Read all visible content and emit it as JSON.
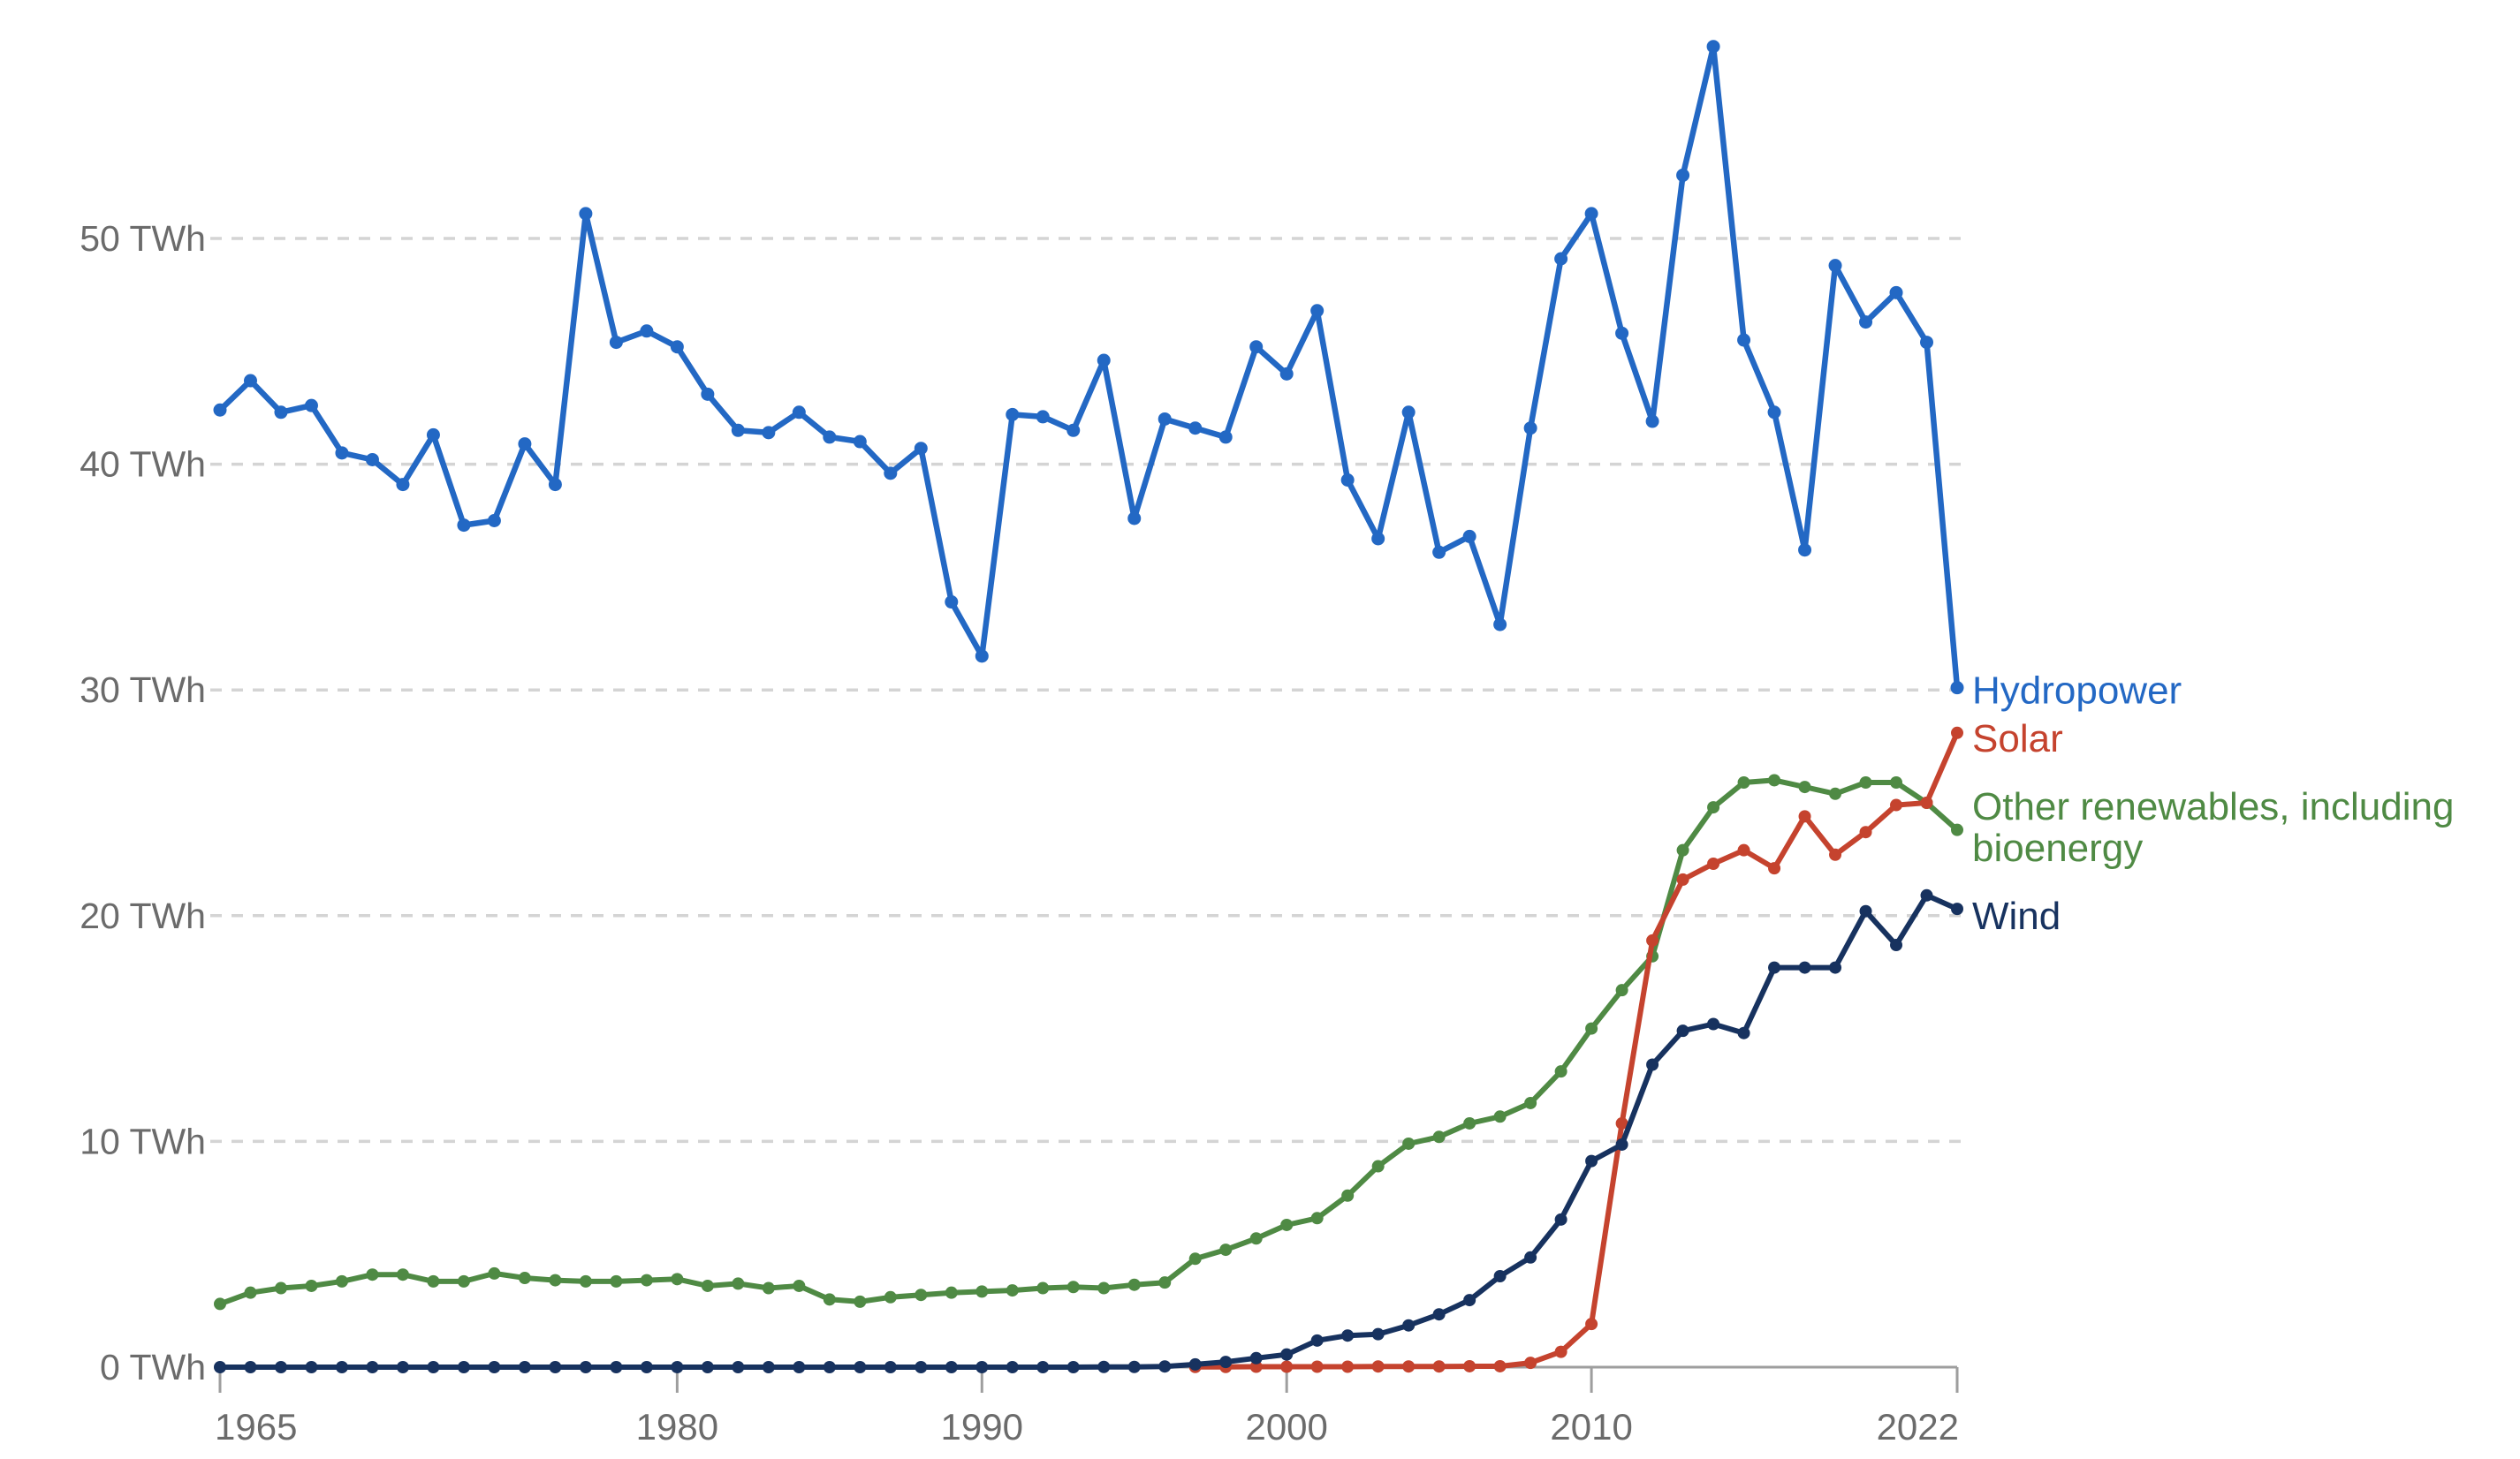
{
  "chart_data": {
    "type": "line",
    "title": "",
    "unit": "TWh",
    "x_label": "",
    "y_label": "",
    "ylim": [
      0,
      60
    ],
    "grid": "horizontal-dashed",
    "legend_position": "end-of-line-labels-right",
    "x": [
      1965,
      1966,
      1967,
      1968,
      1969,
      1970,
      1971,
      1972,
      1973,
      1974,
      1975,
      1976,
      1977,
      1978,
      1979,
      1980,
      1981,
      1982,
      1983,
      1984,
      1985,
      1986,
      1987,
      1988,
      1989,
      1990,
      1991,
      1992,
      1993,
      1994,
      1995,
      1996,
      1997,
      1998,
      1999,
      2000,
      2001,
      2002,
      2003,
      2004,
      2005,
      2006,
      2007,
      2008,
      2009,
      2010,
      2011,
      2012,
      2013,
      2014,
      2015,
      2016,
      2017,
      2018,
      2019,
      2020,
      2021,
      2022
    ],
    "yticks": [
      {
        "value": 0,
        "label": "0 TWh"
      },
      {
        "value": 10,
        "label": "10 TWh"
      },
      {
        "value": 20,
        "label": "20 TWh"
      },
      {
        "value": 30,
        "label": "30 TWh"
      },
      {
        "value": 40,
        "label": "40 TWh"
      },
      {
        "value": 50,
        "label": "50 TWh"
      }
    ],
    "xticks": [
      {
        "year": 1965,
        "label": "1965"
      },
      {
        "year": 1980,
        "label": "1980"
      },
      {
        "year": 1990,
        "label": "1990"
      },
      {
        "year": 2000,
        "label": "2000"
      },
      {
        "year": 2010,
        "label": "2010"
      },
      {
        "year": 2022,
        "label": "2022"
      }
    ],
    "series": [
      {
        "name": "Hydropower",
        "color": "#2368c4",
        "label_lines": [
          "Hydropower"
        ],
        "values": [
          42.4,
          43.7,
          42.3,
          42.6,
          40.5,
          40.2,
          39.1,
          41.3,
          37.3,
          37.5,
          40.9,
          39.1,
          51.1,
          45.4,
          45.9,
          45.2,
          43.1,
          41.5,
          41.4,
          42.3,
          41.2,
          41.0,
          39.6,
          40.7,
          33.9,
          31.5,
          42.2,
          42.1,
          41.5,
          44.6,
          37.6,
          42.0,
          41.6,
          41.2,
          45.2,
          44.0,
          46.8,
          39.3,
          36.7,
          42.3,
          36.1,
          36.8,
          32.9,
          41.6,
          49.1,
          51.1,
          45.8,
          41.9,
          52.8,
          58.5,
          45.5,
          42.3,
          36.2,
          48.8,
          46.3,
          47.6,
          45.4,
          30.1
        ]
      },
      {
        "name": "Solar",
        "color": "#c5432e",
        "label_lines": [
          "Solar"
        ],
        "values": [
          null,
          null,
          null,
          null,
          null,
          null,
          null,
          null,
          null,
          null,
          null,
          null,
          null,
          null,
          null,
          null,
          null,
          null,
          null,
          null,
          null,
          null,
          null,
          null,
          null,
          null,
          null,
          null,
          null,
          null,
          null,
          null,
          0.01,
          0.01,
          0.02,
          0.02,
          0.02,
          0.02,
          0.03,
          0.03,
          0.03,
          0.04,
          0.04,
          0.19,
          0.68,
          1.91,
          10.8,
          18.9,
          21.6,
          22.3,
          22.9,
          22.1,
          24.4,
          22.7,
          23.7,
          24.9,
          25.0,
          28.1
        ]
      },
      {
        "name": "Other renewables, including bioenergy",
        "color": "#4f8a44",
        "label_lines": [
          "Other renewables, including",
          "bioenergy"
        ],
        "values": [
          2.8,
          3.3,
          3.5,
          3.6,
          3.8,
          4.1,
          4.1,
          3.8,
          3.8,
          4.15,
          3.95,
          3.85,
          3.8,
          3.8,
          3.85,
          3.9,
          3.6,
          3.7,
          3.5,
          3.6,
          3.0,
          2.9,
          3.1,
          3.2,
          3.3,
          3.35,
          3.4,
          3.5,
          3.55,
          3.5,
          3.65,
          3.75,
          4.8,
          5.2,
          5.7,
          6.3,
          6.6,
          7.6,
          8.9,
          9.9,
          10.2,
          10.8,
          11.1,
          11.7,
          13.1,
          15.0,
          16.7,
          18.2,
          22.9,
          24.8,
          25.9,
          26.0,
          25.7,
          25.4,
          25.9,
          25.9,
          25.0,
          23.8
        ]
      },
      {
        "name": "Wind",
        "color": "#17325f",
        "label_lines": [
          "Wind"
        ],
        "values": [
          0,
          0,
          0,
          0,
          0,
          0,
          0,
          0,
          0,
          0,
          0,
          0,
          0,
          0,
          0,
          0,
          0,
          0,
          0,
          0,
          0,
          0,
          0,
          0,
          0,
          0,
          0,
          0,
          0,
          0.01,
          0.01,
          0.03,
          0.12,
          0.23,
          0.4,
          0.56,
          1.18,
          1.4,
          1.46,
          1.85,
          2.34,
          2.97,
          4.03,
          4.86,
          6.54,
          9.13,
          9.86,
          13.4,
          14.9,
          15.2,
          14.8,
          17.7,
          17.7,
          17.7,
          20.2,
          18.7,
          20.9,
          20.3
        ]
      }
    ]
  },
  "colors": {
    "background": "#ffffff",
    "grid": "#d4d4d4",
    "axis_line": "#9e9e9e",
    "axis_text": "#6b6b6b",
    "hydropower": "#2368c4",
    "solar": "#c5432e",
    "other_renewables": "#4f8a44",
    "wind": "#17325f"
  }
}
